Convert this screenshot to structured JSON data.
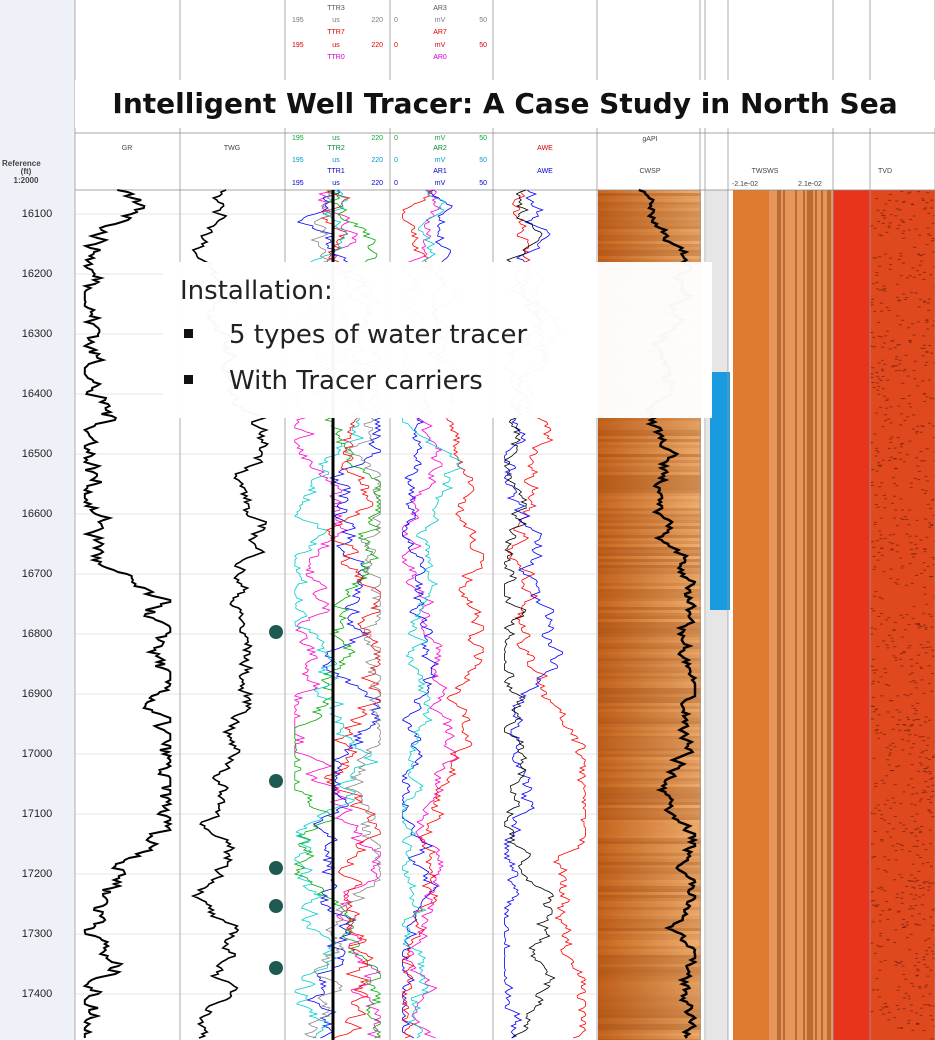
{
  "title": "Intelligent Well Tracer: A Case Study in North Sea",
  "overlay": {
    "heading": "Installation:",
    "bullets": [
      "5 types of water tracer",
      "With Tracer carriers"
    ]
  },
  "reference": {
    "label": "Reference",
    "unit": "(ft)",
    "scale": "1:2000"
  },
  "depths": [
    16100,
    16200,
    16300,
    16400,
    16500,
    16600,
    16700,
    16800,
    16900,
    17000,
    17100,
    17200,
    17300,
    17400
  ],
  "headers": [
    "TTR3",
    "AR3",
    "TTR7",
    "AR7",
    "TTR0",
    "AR0",
    "GR",
    "TWG",
    "TTR2",
    "AR2",
    "AWE",
    "TTR1",
    "AR1",
    "AWE",
    "gAPI",
    "CWSP",
    "TWSWS",
    "-2.1e-02",
    "2.1e-02",
    "TVD"
  ],
  "scale_rows": [
    [
      "195",
      "us",
      "220",
      "0",
      "mV",
      "50"
    ],
    [
      "195",
      "us",
      "220",
      "0",
      "mV",
      "50"
    ],
    [
      "195",
      "us",
      "220",
      "0",
      "mV",
      "50"
    ],
    [
      "195",
      "us",
      "220",
      "0",
      "mV",
      "50"
    ],
    [
      "195",
      "us",
      "220",
      "0",
      "mV",
      "50"
    ]
  ]
}
